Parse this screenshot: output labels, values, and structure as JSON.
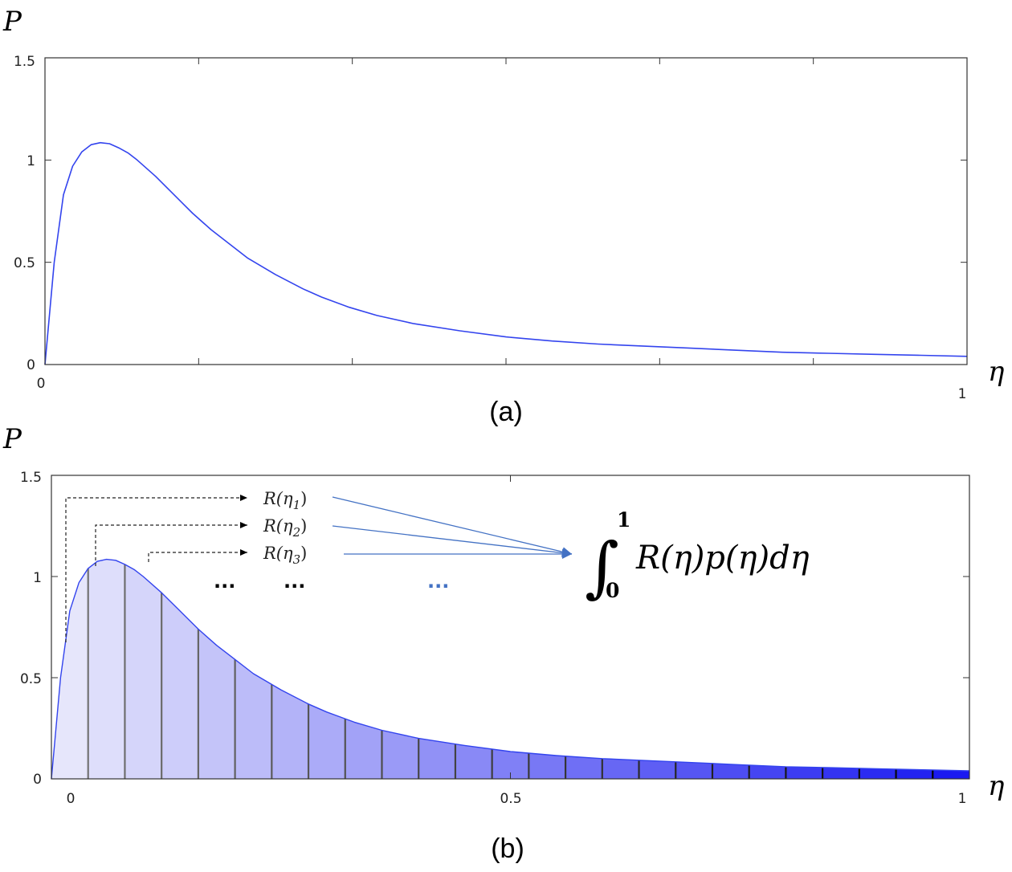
{
  "chart_data": [
    {
      "type": "line",
      "panel_label": "(a)",
      "ylabel": "P",
      "xlabel": "η",
      "xlim": [
        0,
        1
      ],
      "ylim": [
        0,
        1.5
      ],
      "x_tick_labels": [
        "0",
        "1"
      ],
      "y_tick_labels": [
        "0",
        "0.5",
        "1",
        "1.5"
      ],
      "line_color": "#3344ee",
      "series": [
        {
          "x": [
            0,
            0.01,
            0.02,
            0.03,
            0.04,
            0.05,
            0.06,
            0.07,
            0.08,
            0.09,
            0.1,
            0.12,
            0.14,
            0.16,
            0.18,
            0.2,
            0.22,
            0.25,
            0.28,
            0.3,
            0.33,
            0.36,
            0.4,
            0.45,
            0.5,
            0.55,
            0.6,
            0.65,
            0.7,
            0.75,
            0.8,
            0.85,
            0.9,
            0.95,
            1.0
          ],
          "values": [
            0,
            0.5,
            0.83,
            0.97,
            1.04,
            1.075,
            1.085,
            1.08,
            1.06,
            1.035,
            1.0,
            0.92,
            0.83,
            0.74,
            0.66,
            0.59,
            0.52,
            0.44,
            0.37,
            0.33,
            0.28,
            0.24,
            0.2,
            0.165,
            0.135,
            0.115,
            0.1,
            0.09,
            0.08,
            0.07,
            0.06,
            0.055,
            0.05,
            0.045,
            0.04
          ]
        }
      ]
    },
    {
      "type": "area",
      "panel_label": "(b)",
      "ylabel": "P",
      "xlabel": "η",
      "xlim": [
        0,
        1
      ],
      "ylim": [
        0,
        1.5
      ],
      "x_tick_labels": [
        "0",
        "0.5",
        "1"
      ],
      "y_tick_labels": [
        "0",
        "0.5",
        "1",
        "1.5"
      ],
      "fill_start_color": "#e6e6fb",
      "fill_end_color": "#1a1af0",
      "line_color": "#3344ee",
      "slice_count": 25,
      "series": [
        {
          "x": [
            0,
            0.01,
            0.02,
            0.03,
            0.04,
            0.05,
            0.06,
            0.07,
            0.08,
            0.09,
            0.1,
            0.12,
            0.14,
            0.16,
            0.18,
            0.2,
            0.22,
            0.25,
            0.28,
            0.3,
            0.33,
            0.36,
            0.4,
            0.45,
            0.5,
            0.55,
            0.6,
            0.65,
            0.7,
            0.75,
            0.8,
            0.85,
            0.9,
            0.95,
            1.0
          ],
          "values": [
            0,
            0.5,
            0.83,
            0.97,
            1.04,
            1.075,
            1.085,
            1.08,
            1.06,
            1.035,
            1.0,
            0.92,
            0.83,
            0.74,
            0.66,
            0.59,
            0.52,
            0.44,
            0.37,
            0.33,
            0.28,
            0.24,
            0.2,
            0.165,
            0.135,
            0.115,
            0.1,
            0.09,
            0.08,
            0.07,
            0.06,
            0.055,
            0.05,
            0.045,
            0.04
          ]
        }
      ],
      "annotations": {
        "terms": [
          {
            "base": "R(η",
            "sub": "1",
            "close": ")"
          },
          {
            "base": "R(η",
            "sub": "2",
            "close": ")"
          },
          {
            "base": "R(η",
            "sub": "3",
            "close": ")"
          }
        ],
        "ellipsis": "...",
        "ellipsis_color_dark": "#000000",
        "ellipsis_color_accent": "#4472c4",
        "arrow_color": "#4472c4",
        "formula": {
          "integral_sign": "∫",
          "lower_limit": "0",
          "upper_limit": "1",
          "integrand": "R(η)p(η)dη"
        }
      }
    }
  ]
}
